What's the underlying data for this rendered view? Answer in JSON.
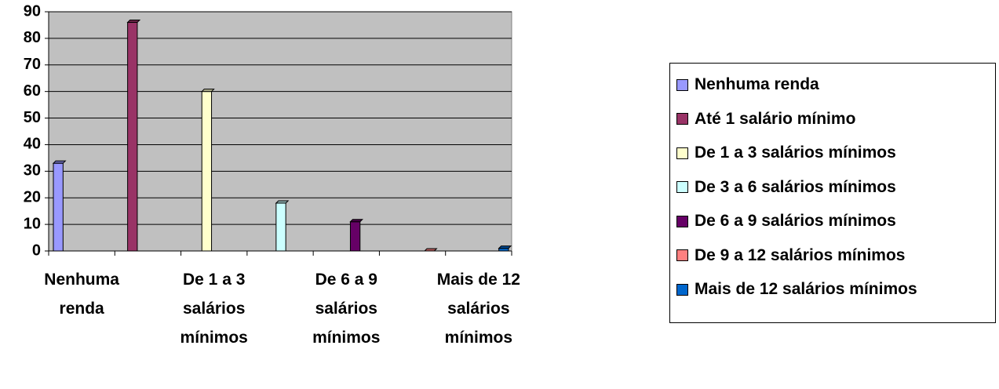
{
  "chart_data": {
    "type": "bar",
    "categories": [
      "Nenhuma renda",
      null,
      "De 1 a 3 salários mínimos",
      null,
      "De 6 a 9 salários mínimos",
      null,
      "Mais de 12 salários mínimos"
    ],
    "series": [
      {
        "name": "Nenhuma renda",
        "color": "#9999ff",
        "values": [
          33,
          null,
          null,
          null,
          null,
          null,
          null
        ]
      },
      {
        "name": "Até 1 salário mínimo",
        "color": "#993366",
        "values": [
          null,
          86,
          null,
          null,
          null,
          null,
          null
        ]
      },
      {
        "name": "De 1 a 3 salários mínimos",
        "color": "#ffffcc",
        "values": [
          null,
          null,
          60,
          null,
          null,
          null,
          null
        ]
      },
      {
        "name": "De 3 a 6 salários mínimos",
        "color": "#ccffff",
        "values": [
          null,
          null,
          null,
          18,
          null,
          null,
          null
        ]
      },
      {
        "name": "De 6 a 9 salários mínimos",
        "color": "#660066",
        "values": [
          null,
          null,
          null,
          null,
          11,
          null,
          null
        ]
      },
      {
        "name": "De 9 a 12 salários mínimos",
        "color": "#ff8080",
        "values": [
          null,
          null,
          null,
          null,
          null,
          0,
          null
        ]
      },
      {
        "name": "Mais de 12 salários mínimos",
        "color": "#0066cc",
        "values": [
          null,
          null,
          null,
          null,
          null,
          null,
          1
        ]
      }
    ],
    "ylim": [
      0,
      90
    ],
    "yticks": [
      0,
      10,
      20,
      30,
      40,
      50,
      60,
      70,
      80,
      90
    ],
    "grid": true,
    "legend": "right"
  }
}
